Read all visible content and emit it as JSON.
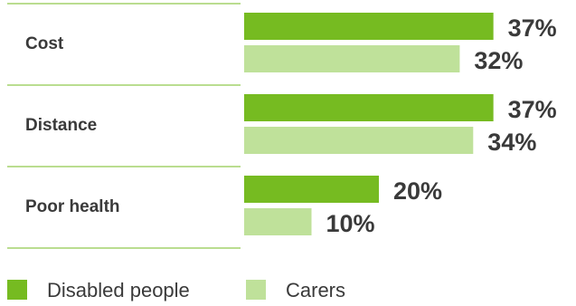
{
  "chart_data": {
    "type": "bar",
    "orientation": "horizontal",
    "categories": [
      "Cost",
      "Distance",
      "Poor health"
    ],
    "series": [
      {
        "name": "Disabled people",
        "values": [
          37,
          37,
          20
        ],
        "color": "#76bb21"
      },
      {
        "name": "Carers",
        "values": [
          32,
          34,
          10
        ],
        "color": "#bfe19a"
      }
    ],
    "value_suffix": "%",
    "divider_color": "#76bb21",
    "grid": false,
    "legend": "bottom-left"
  }
}
